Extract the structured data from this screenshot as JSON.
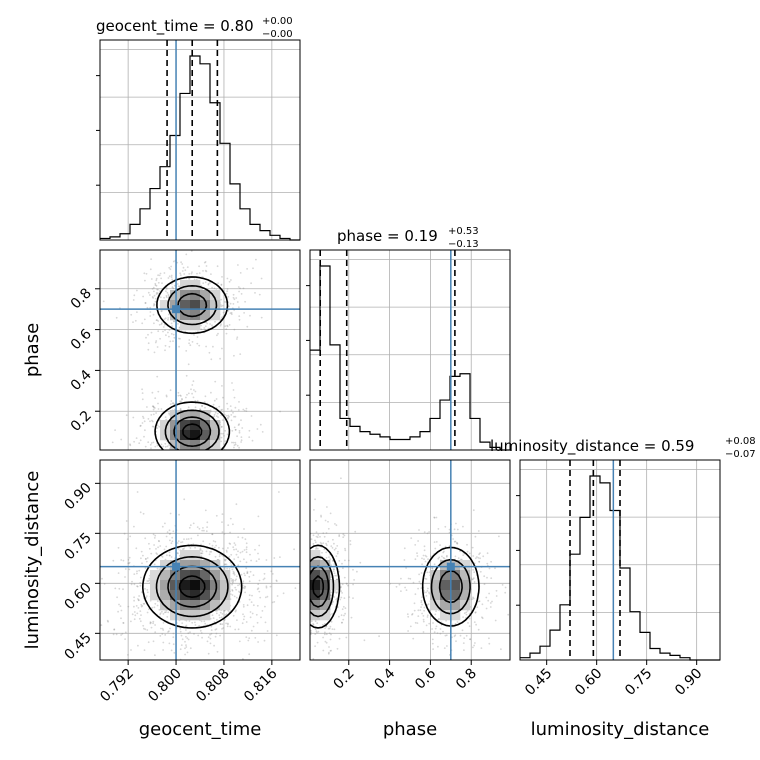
{
  "chart_data": {
    "type": "corner",
    "parameters": [
      "geocent_time",
      "phase",
      "luminosity_distance"
    ],
    "injection": {
      "geocent_time": 0.8,
      "phase": 0.7,
      "luminosity_distance": 0.65
    },
    "colors": {
      "truth": "#4682b4",
      "hist": "#000000",
      "grid": "#b0b0b0",
      "scatter": "#8c8c8c"
    },
    "grid": true,
    "titles": [
      {
        "name": "geocent_time",
        "median": "0.80",
        "plus": "+0.00",
        "minus": "−0.00"
      },
      {
        "name": "phase",
        "median": "0.19",
        "plus": "+0.53",
        "minus": "−0.13"
      },
      {
        "name": "luminosity_distance",
        "median": "0.59",
        "plus": "+0.08",
        "minus": "−0.07"
      }
    ],
    "axis_labels": {
      "geocent_time": "geocent_time",
      "phase": "phase",
      "luminosity_distance": "luminosity_distance"
    },
    "ranges": {
      "geocent_time": [
        0.7873,
        0.8207
      ],
      "phase": [
        0.01,
        0.99
      ],
      "luminosity_distance": [
        0.37,
        0.97
      ]
    },
    "ticks": {
      "geocent_time": [
        "0.792",
        "0.800",
        "0.808",
        "0.816"
      ],
      "phase": [
        "0.2",
        "0.4",
        "0.6",
        "0.8"
      ],
      "luminosity_distance": [
        "0.45",
        "0.60",
        "0.75",
        "0.90"
      ]
    },
    "quantile_lines": {
      "geocent_time": [
        0.7985,
        0.8027,
        0.8069
      ],
      "phase": [
        0.06,
        0.19,
        0.72
      ],
      "luminosity_distance": [
        0.52,
        0.59,
        0.67
      ]
    },
    "hist_1d": {
      "geocent_time": {
        "bins_from": 0.7873,
        "bin_width": 0.00167,
        "counts": [
          1,
          2,
          4,
          10,
          20,
          33,
          47,
          67,
          94,
          118,
          113,
          88,
          62,
          36,
          20,
          10,
          6,
          3,
          1,
          0
        ]
      },
      "phase": {
        "bins_from": 0.01,
        "bin_width": 0.049,
        "counts": [
          38,
          70,
          40,
          12,
          9,
          7,
          6,
          5,
          4,
          4,
          5,
          7,
          12,
          19,
          28,
          29,
          12,
          3,
          1,
          0
        ]
      },
      "luminosity_distance": {
        "bins_from": 0.37,
        "bin_width": 0.03,
        "counts": [
          1,
          3,
          6,
          13,
          24,
          46,
          62,
          80,
          77,
          65,
          40,
          21,
          12,
          5,
          3,
          2,
          1,
          0,
          0,
          0
        ]
      }
    },
    "modes_2d": {
      "geocent_time_vs_phase": [
        {
          "center": [
            0.8027,
            0.72
          ],
          "spread": [
            0.003,
            0.07
          ],
          "weight": 0.45
        },
        {
          "center": [
            0.8027,
            0.1
          ],
          "spread": [
            0.003,
            0.07
          ],
          "weight": 0.55
        }
      ],
      "geocent_time_vs_luminosity_distance": [
        {
          "center": [
            0.8027,
            0.59
          ],
          "spread": [
            0.004,
            0.06
          ],
          "weight": 1
        }
      ],
      "phase_vs_luminosity_distance": [
        {
          "center": [
            0.05,
            0.59
          ],
          "spread": [
            0.05,
            0.06
          ],
          "weight": 0.55
        },
        {
          "center": [
            0.7,
            0.59
          ],
          "spread": [
            0.07,
            0.06
          ],
          "weight": 0.45
        }
      ]
    }
  }
}
